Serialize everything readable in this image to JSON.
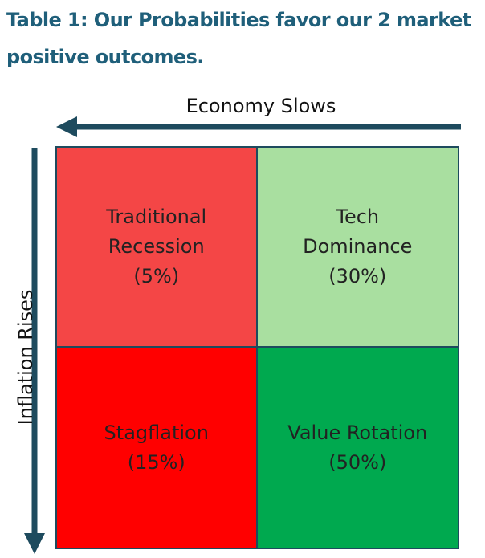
{
  "title": {
    "line1": "Table 1: Our Probabilities favor our 2 market",
    "line2": "positive outcomes."
  },
  "axes": {
    "horizontal_label": "Economy Slows",
    "vertical_label": "Inflation Rises"
  },
  "quadrants": [
    {
      "position": "top-left",
      "lines": [
        "Traditional",
        "Recession",
        "(5%)"
      ],
      "color": "#f44646"
    },
    {
      "position": "top-right",
      "lines": [
        "Tech",
        "Dominance",
        "(30%)"
      ],
      "color": "#a9dfa0"
    },
    {
      "position": "bottom-left",
      "lines": [
        "Stagflation",
        "(15%)"
      ],
      "color": "#ff0000"
    },
    {
      "position": "bottom-right",
      "lines": [
        "Value Rotation",
        "(50%)"
      ],
      "color": "#00a94f"
    }
  ],
  "colors": {
    "title": "#1f5f7a",
    "arrow": "#1e4b5e",
    "grid_border": "#1e4b5e"
  }
}
